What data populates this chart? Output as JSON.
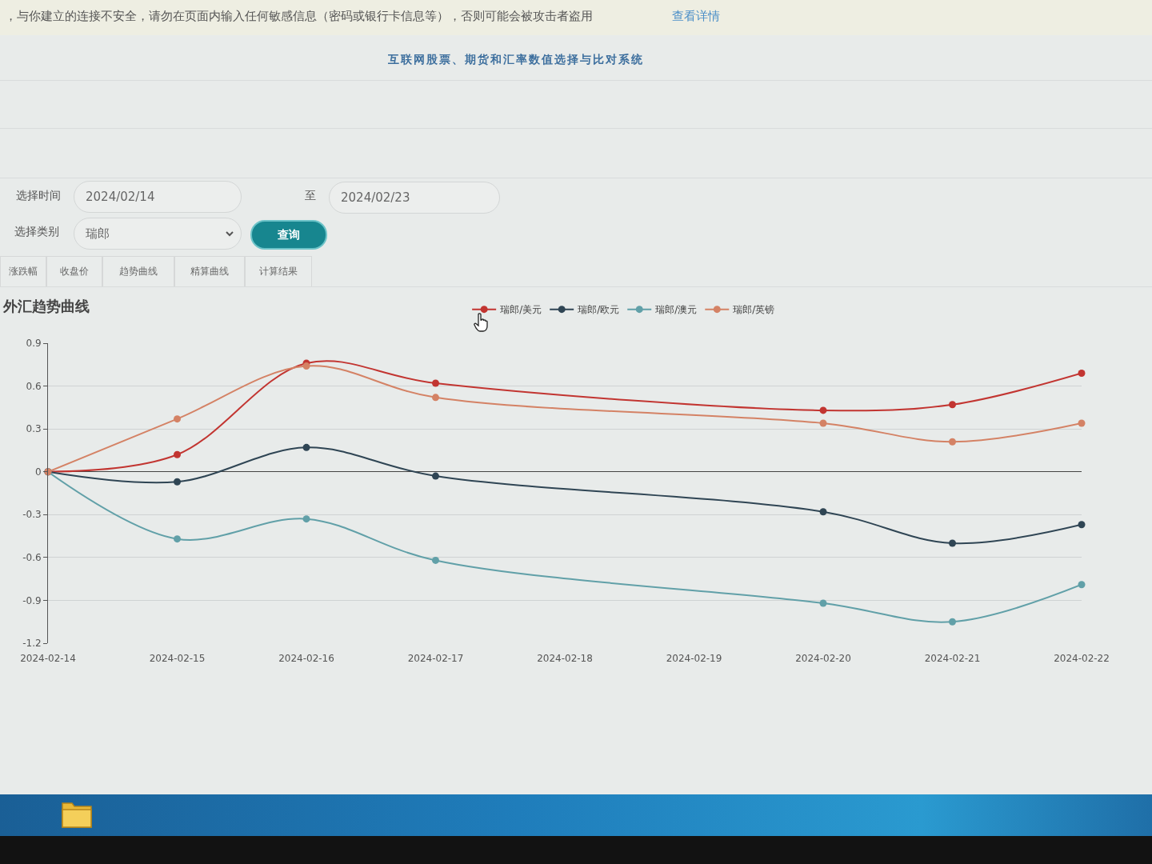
{
  "chart_data": {
    "type": "line",
    "title": "外汇趋势曲线",
    "annotations": [
      "，与你建立的连接不安全，请勿在页面内输入任何敏感信息（密码或银行卡信息等），否则可能会被攻击者盗用",
      "查看详情",
      "互联网股票、期货和汇率数值选择与比对系统",
      "选择时间",
      "2024/02/14",
      "至",
      "2024/02/23",
      "选择类别",
      "瑞郎",
      "查询",
      "涨跌幅",
      "收盘价",
      "趋势曲线",
      "精算曲线",
      "计算结果"
    ],
    "x": [
      "2024-02-14",
      "2024-02-15",
      "2024-02-16",
      "2024-02-17",
      "2024-02-20",
      "2024-02-21",
      "2024-02-22"
    ],
    "series": [
      {
        "name": "瑞郎/美元",
        "color": "#c23531",
        "values": [
          0,
          0.12,
          0.76,
          0.62,
          0.43,
          0.47,
          0.69
        ]
      },
      {
        "name": "瑞郎/欧元",
        "color": "#2f4554",
        "values": [
          0,
          -0.07,
          0.17,
          -0.03,
          -0.28,
          -0.5,
          -0.37
        ]
      },
      {
        "name": "瑞郎/澳元",
        "color": "#61a0a8",
        "values": [
          0,
          -0.47,
          -0.33,
          -0.62,
          -0.92,
          -1.05,
          -0.79
        ]
      },
      {
        "name": "瑞郎/英镑",
        "color": "#d48265",
        "values": [
          0,
          0.37,
          0.74,
          0.52,
          0.34,
          0.21,
          0.34
        ]
      }
    ],
    "xlim": [
      "2024-02-14",
      "2024-02-22"
    ],
    "xticks": [
      "2024-02-14",
      "2024-02-15",
      "2024-02-16",
      "2024-02-17",
      "2024-02-18",
      "2024-02-19",
      "2024-02-20",
      "2024-02-21",
      "2024-02-22"
    ],
    "ylim": [
      -1.2,
      0.9
    ],
    "yticks": [
      -1.2,
      -0.9,
      -0.6,
      -0.3,
      0,
      0.3,
      0.6,
      0.9
    ],
    "grid": "y",
    "legend": "top",
    "marker": "circle"
  }
}
